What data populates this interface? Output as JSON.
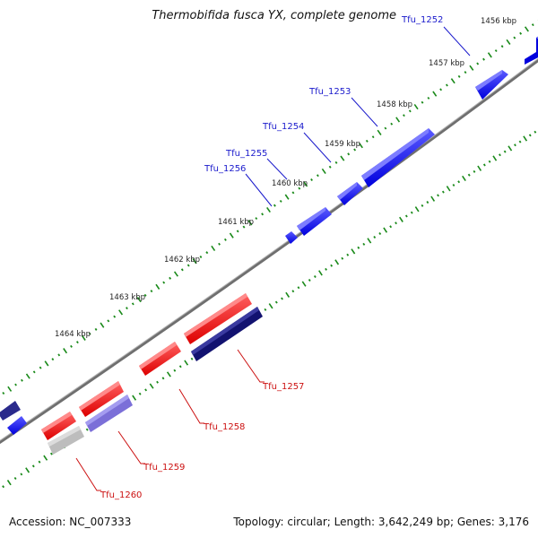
{
  "title": "Thermobifida fusca YX, complete genome",
  "footer": {
    "accession": "Accession: NC_007333",
    "summary": "Topology: circular; Length: 3,642,249 bp; Genes: 3,176"
  },
  "ruler_labels": [
    "1456 kbp",
    "1457 kbp",
    "1458 kbp",
    "1459 kbp",
    "1460 kbp",
    "1461 kbp",
    "1462 kbp",
    "1463 kbp",
    "1464 kbp"
  ],
  "forward_genes": [
    "Tfu_1252",
    "Tfu_1253",
    "Tfu_1254",
    "Tfu_1255",
    "Tfu_1256"
  ],
  "reverse_genes": [
    "Tfu_1257",
    "Tfu_1258",
    "Tfu_1259",
    "Tfu_1260"
  ],
  "colors": {
    "forward_gene": "#1515ee",
    "reverse_gene": "#ee1515",
    "forward_label": "#1a1acc",
    "reverse_label": "#cc1111",
    "backbone": "#777777",
    "ticks": "#1a8a1a",
    "navy_gene": "#121270",
    "lavender_gene": "#7b6fd8",
    "grey_gene": "#bdbdbd"
  }
}
